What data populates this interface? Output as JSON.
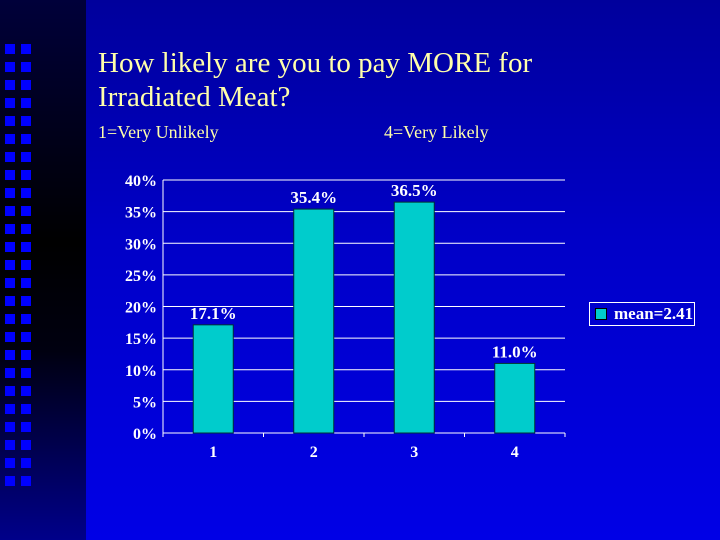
{
  "slide": {
    "title": "How likely are you to pay MORE for Irradiated Meat?",
    "scale_low": "1=Very Unlikely",
    "scale_high": "4=Very Likely",
    "bullet_color": "#0000ff"
  },
  "chart_data": {
    "type": "bar",
    "categories": [
      "1",
      "2",
      "3",
      "4"
    ],
    "values": [
      17.1,
      35.4,
      36.5,
      11.0
    ],
    "value_labels": [
      "17.1%",
      "35.4%",
      "36.5%",
      "11.0%"
    ],
    "y_ticks": [
      "0%",
      "5%",
      "10%",
      "15%",
      "20%",
      "25%",
      "30%",
      "35%",
      "40%"
    ],
    "ylim": [
      0,
      40
    ],
    "grid": true,
    "bar_color": "#00cccc",
    "legend": {
      "label": "mean=2.41",
      "placement": "right"
    }
  }
}
